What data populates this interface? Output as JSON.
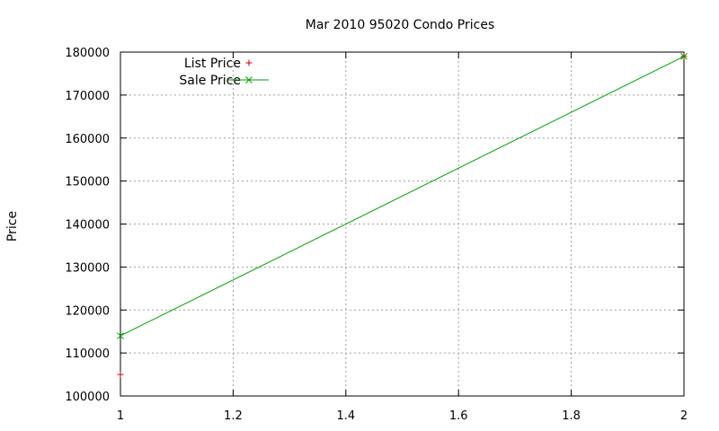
{
  "chart_data": {
    "type": "line",
    "title": "Mar 2010 95020 Condo Prices",
    "xlabel": "",
    "ylabel": "Price",
    "xlim": [
      1,
      2
    ],
    "ylim": [
      100000,
      180000
    ],
    "x_ticks": [
      1,
      1.2,
      1.4,
      1.6,
      1.8,
      2
    ],
    "x_tick_labels": [
      "1",
      "1.2",
      "1.4",
      "1.6",
      "1.8",
      "2"
    ],
    "y_ticks": [
      100000,
      110000,
      120000,
      130000,
      140000,
      150000,
      160000,
      170000,
      180000
    ],
    "y_tick_labels": [
      "100000",
      "110000",
      "120000",
      "130000",
      "140000",
      "150000",
      "160000",
      "170000",
      "180000"
    ],
    "grid": true,
    "legend_position": "top-left",
    "series": [
      {
        "name": "List Price",
        "style": "points",
        "marker": "plus",
        "color": "#cc0000",
        "points": [
          {
            "x": 1,
            "y": 105000
          },
          {
            "x": 2,
            "y": 179000
          }
        ]
      },
      {
        "name": "Sale Price",
        "style": "linespoints",
        "marker": "cross",
        "color": "#00a000",
        "points": [
          {
            "x": 1,
            "y": 114000
          },
          {
            "x": 2,
            "y": 179000
          }
        ]
      }
    ]
  }
}
